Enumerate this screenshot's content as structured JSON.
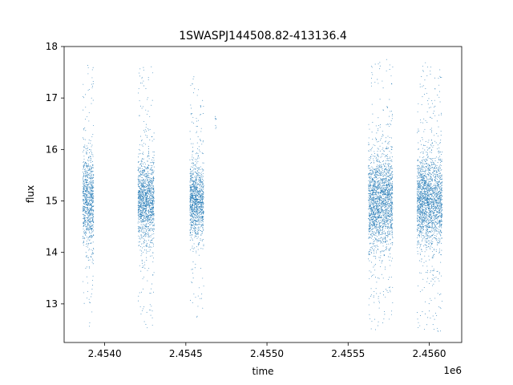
{
  "chart_data": {
    "type": "scatter",
    "title": "1SWASPJ144508.82-413136.4",
    "xlabel": "time",
    "ylabel": "flux",
    "x_offset_label": "1e6",
    "xlim": [
      2453750,
      2456200
    ],
    "ylim": [
      12.25,
      18.0
    ],
    "x_ticks": [
      2454000,
      2454500,
      2455000,
      2455500,
      2456000
    ],
    "x_tick_labels": [
      "2.4540",
      "2.4545",
      "2.4550",
      "2.4555",
      "2.4560"
    ],
    "y_ticks": [
      13,
      14,
      15,
      16,
      17,
      18
    ],
    "y_tick_labels": [
      "13",
      "14",
      "15",
      "16",
      "17",
      "18"
    ],
    "grid": false,
    "legend": "none",
    "marker_color": "#1f77b4",
    "seasons": [
      {
        "x_start": 2453865,
        "x_end": 2453932,
        "mean": 15.0,
        "core_sd": 0.45,
        "y_min": 12.55,
        "y_max": 17.75
      },
      {
        "x_start": 2454205,
        "x_end": 2454305,
        "mean": 15.0,
        "core_sd": 0.4,
        "y_min": 12.5,
        "y_max": 17.65
      },
      {
        "x_start": 2454525,
        "x_end": 2454610,
        "mean": 15.0,
        "core_sd": 0.35,
        "y_min": 12.55,
        "y_max": 17.5
      },
      {
        "x_start": 2454680,
        "x_end": 2454700,
        "mean": 16.6,
        "core_sd": 0.1,
        "y_min": 16.4,
        "y_max": 16.75
      },
      {
        "x_start": 2455625,
        "x_end": 2455775,
        "mean": 15.0,
        "core_sd": 0.45,
        "y_min": 12.5,
        "y_max": 17.75
      },
      {
        "x_start": 2455925,
        "x_end": 2456080,
        "mean": 15.0,
        "core_sd": 0.45,
        "y_min": 12.45,
        "y_max": 17.75
      }
    ]
  }
}
